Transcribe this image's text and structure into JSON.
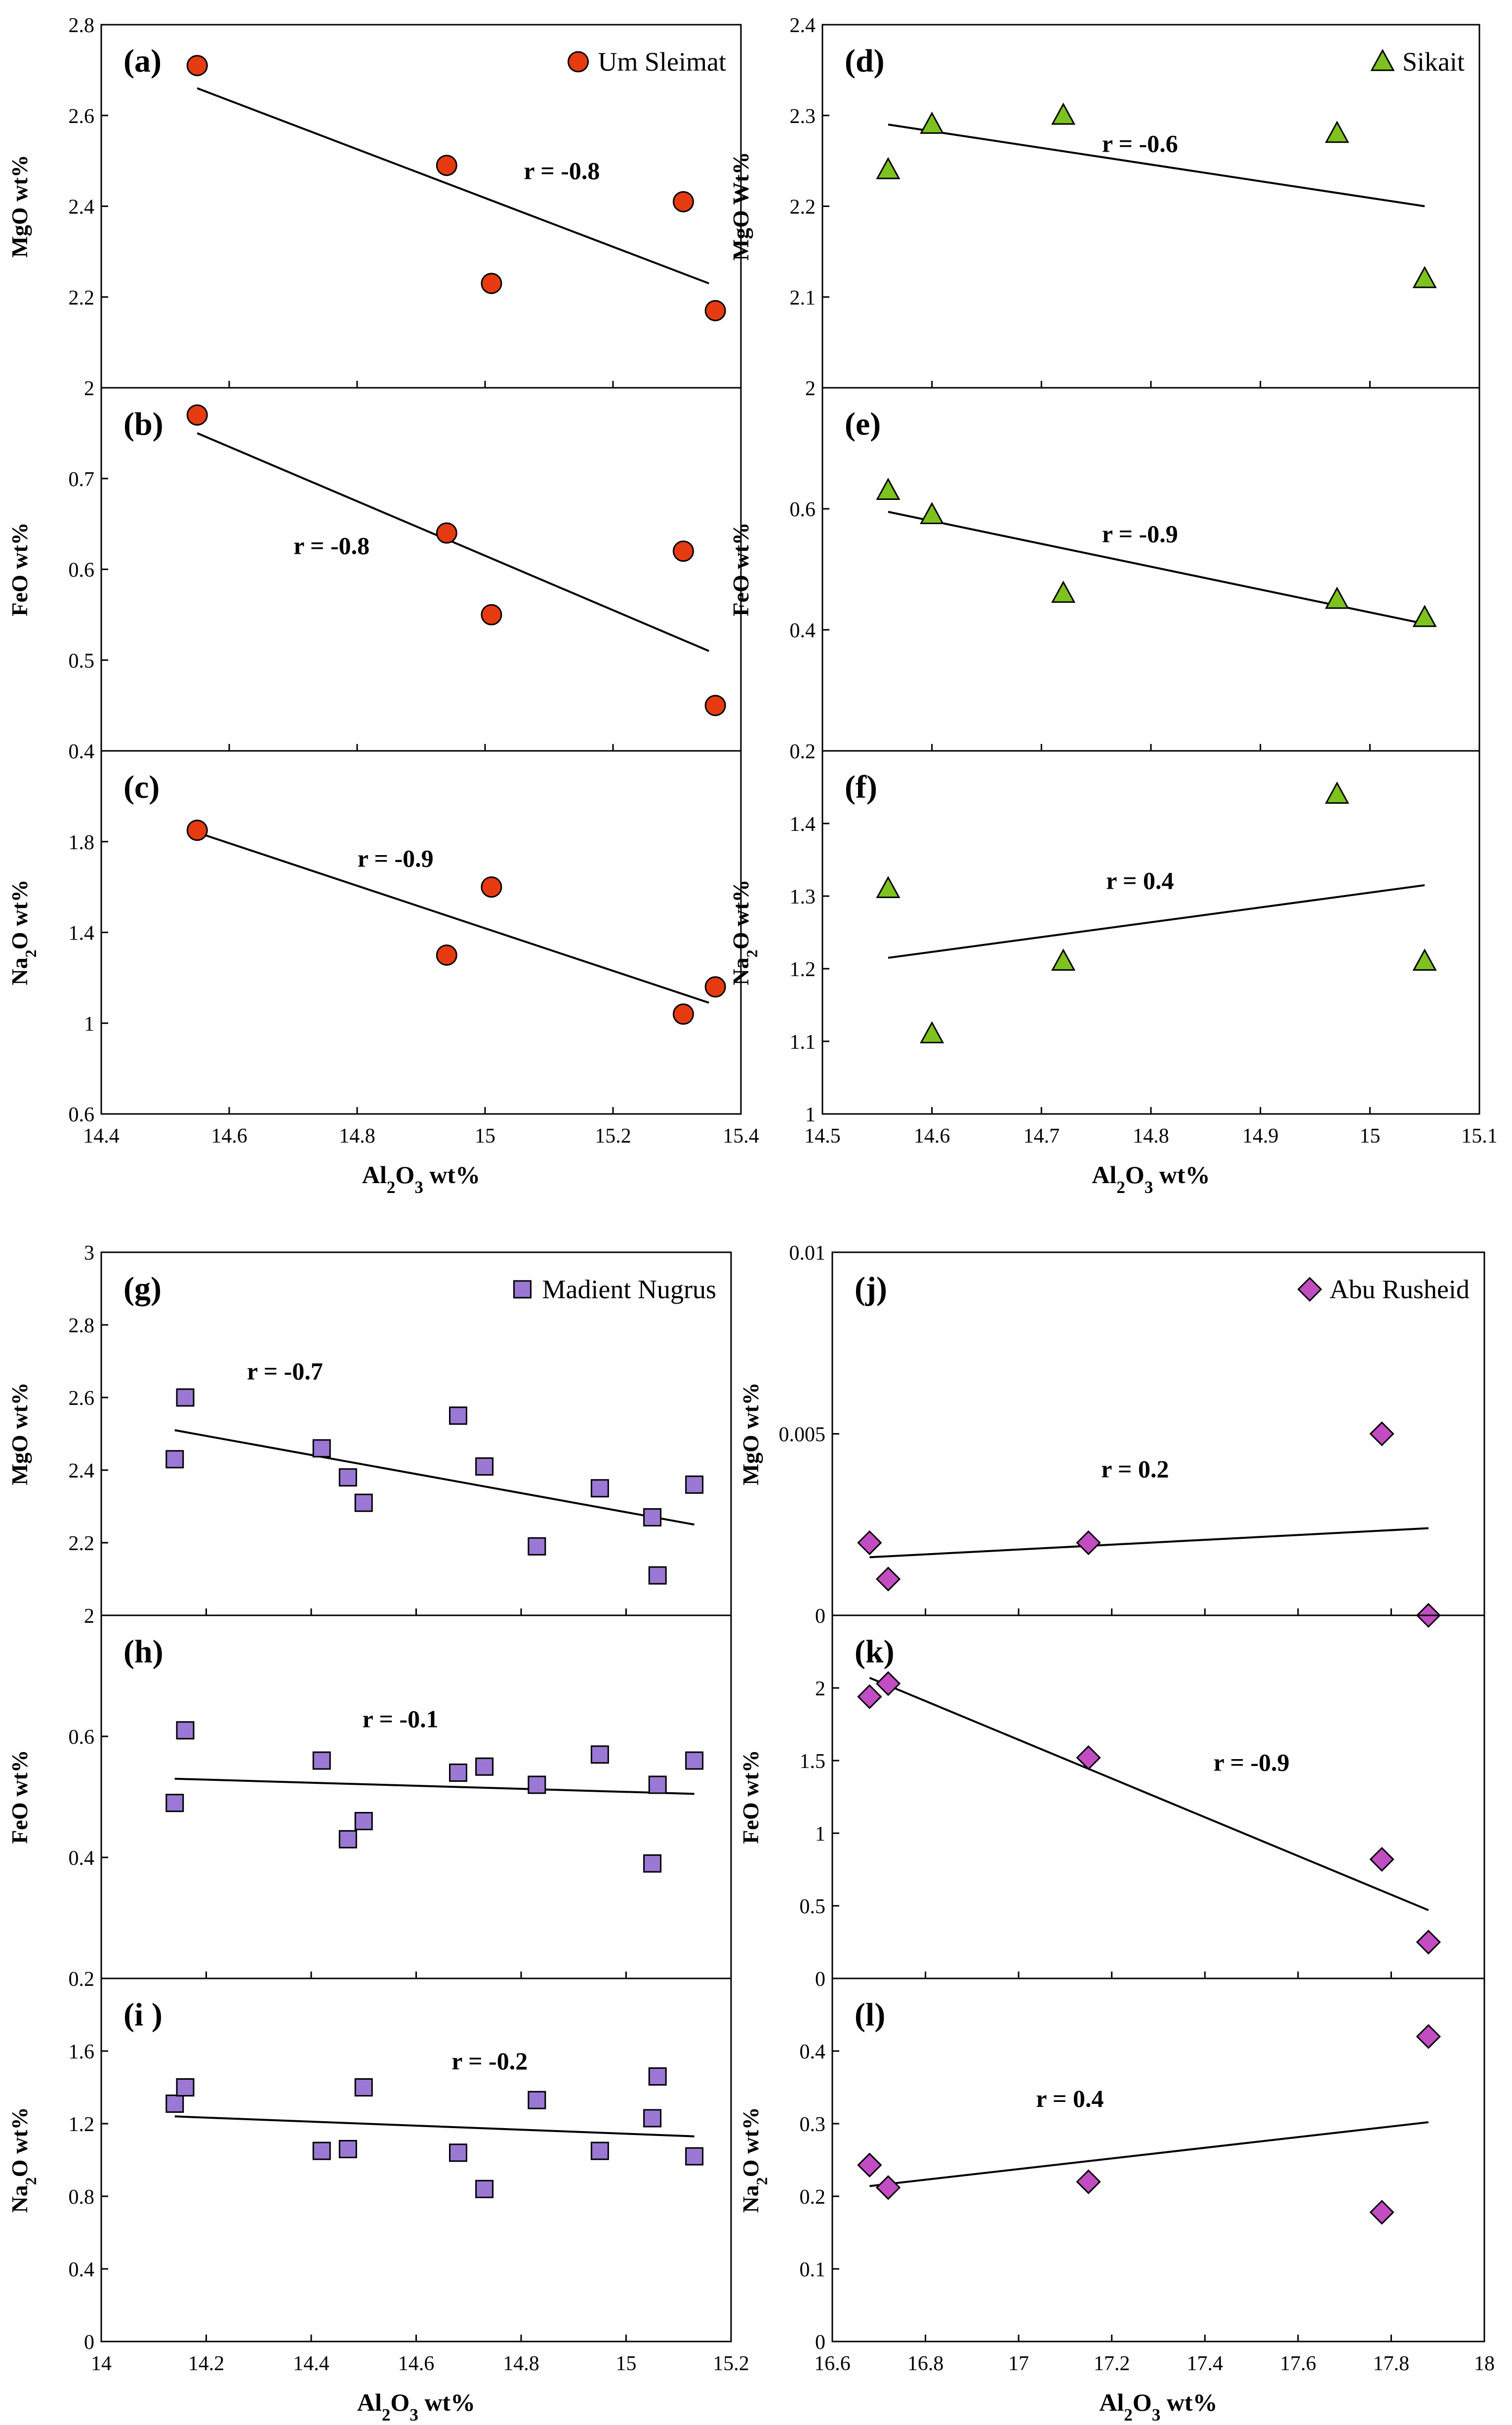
{
  "figure": {
    "groups": [
      {
        "id": "um-sleimat",
        "legend": "Um Sleimat",
        "marker": "circle",
        "color": "#e63b10",
        "xlabel": "Al2O3 wt%",
        "xlim": [
          14.4,
          15.4
        ],
        "xticks": [
          "14.4",
          "14.6",
          "14.8",
          "15",
          "15.2",
          "15.4"
        ],
        "x": [
          14.55,
          14.94,
          15.01,
          15.31,
          15.36
        ]
      },
      {
        "id": "sikait",
        "legend": "Sikait",
        "marker": "triangle",
        "color": "#7dc21e",
        "xlabel": "Al2O3 wt%",
        "xlim": [
          14.5,
          15.1
        ],
        "xticks": [
          "14.5",
          "14.6",
          "14.7",
          "14.8",
          "14.9",
          "15",
          "15.1"
        ],
        "x": [
          14.56,
          14.6,
          14.72,
          14.97,
          15.05
        ]
      },
      {
        "id": "madient-nugrus",
        "legend": "Madient Nugrus",
        "marker": "square",
        "color": "#9a78d4",
        "xlabel": "Al2O3 wt%",
        "xlim": [
          14.0,
          15.2
        ],
        "xticks": [
          "14",
          "14.2",
          "14.4",
          "14.6",
          "14.8",
          "15",
          "15.2"
        ],
        "x": [
          14.14,
          14.16,
          14.42,
          14.47,
          14.5,
          14.68,
          14.73,
          14.83,
          14.95,
          15.05,
          15.06,
          15.13
        ]
      },
      {
        "id": "abu-rusheid",
        "legend": "Abu Rusheid",
        "marker": "diamond",
        "color": "#c24cc2",
        "xlabel": "Al2O3 wt%",
        "xlim": [
          16.6,
          18.0
        ],
        "xticks": [
          "16.6",
          "16.8",
          "17",
          "17.2",
          "17.4",
          "17.6",
          "17.8",
          "18"
        ],
        "x": [
          16.68,
          16.72,
          17.15,
          17.78,
          17.88
        ]
      }
    ]
  },
  "chart_data": [
    {
      "type": "scatter",
      "panel": "(a)",
      "group": "Um Sleimat",
      "ylabel": "MgO wt%",
      "ylim": [
        2.0,
        2.8
      ],
      "yticks": [
        "2",
        "2.2",
        "2.4",
        "2.6",
        "2.8"
      ],
      "x": [
        14.55,
        14.94,
        15.01,
        15.31,
        15.36
      ],
      "y": [
        2.71,
        2.49,
        2.23,
        2.41,
        2.17
      ],
      "fit": [
        [
          14.55,
          2.66
        ],
        [
          15.35,
          2.23
        ]
      ],
      "r": "r = -0.8",
      "rpos": [
        15.12,
        2.46
      ],
      "showLegend": true
    },
    {
      "type": "scatter",
      "panel": "(b)",
      "group": "Um Sleimat",
      "ylabel": "FeO wt%",
      "ylim": [
        0.4,
        0.8
      ],
      "yticks": [
        "0.4",
        "0.5",
        "0.6",
        "0.7"
      ],
      "x": [
        14.55,
        14.94,
        15.01,
        15.31,
        15.36
      ],
      "y": [
        0.77,
        0.64,
        0.55,
        0.62,
        0.45
      ],
      "fit": [
        [
          14.55,
          0.75
        ],
        [
          15.35,
          0.51
        ]
      ],
      "r": "r = -0.8",
      "rpos": [
        14.76,
        0.617
      ]
    },
    {
      "type": "scatter",
      "panel": "(c)",
      "group": "Um Sleimat",
      "ylabel": "Na2O wt%",
      "ylim": [
        0.6,
        2.2
      ],
      "yticks": [
        "0.6",
        "1",
        "1.4",
        "1.8"
      ],
      "hideTopTick": true,
      "x": [
        14.55,
        14.94,
        15.01,
        15.31,
        15.36
      ],
      "y": [
        1.85,
        1.3,
        1.6,
        1.04,
        1.16
      ],
      "fit": [
        [
          14.55,
          1.84
        ],
        [
          15.35,
          1.09
        ]
      ],
      "r": "r = -0.9",
      "rpos": [
        14.86,
        1.69
      ],
      "showXAxis": true
    },
    {
      "type": "scatter",
      "panel": "(d)",
      "group": "Sikait",
      "ylabel": "MgO Wt%",
      "ylim": [
        2.0,
        2.4
      ],
      "yticks": [
        "2",
        "2.1",
        "2.2",
        "2.3",
        "2.4"
      ],
      "x": [
        14.56,
        14.6,
        14.72,
        14.97,
        15.05
      ],
      "y": [
        2.24,
        2.29,
        2.3,
        2.28,
        2.12
      ],
      "fit": [
        [
          14.56,
          2.29
        ],
        [
          15.05,
          2.2
        ]
      ],
      "r": "r = -0.6",
      "rpos": [
        14.79,
        2.26
      ],
      "showLegend": true
    },
    {
      "type": "scatter",
      "panel": "(e)",
      "group": "Sikait",
      "ylabel": "FeO wt%",
      "ylim": [
        0.2,
        0.8
      ],
      "yticks": [
        "0.2",
        "0.4",
        "0.6"
      ],
      "x": [
        14.56,
        14.6,
        14.72,
        14.97,
        15.05
      ],
      "y": [
        0.63,
        0.59,
        0.46,
        0.45,
        0.42
      ],
      "fit": [
        [
          14.56,
          0.595
        ],
        [
          15.05,
          0.41
        ]
      ],
      "r": "r = -0.9",
      "rpos": [
        14.79,
        0.545
      ]
    },
    {
      "type": "scatter",
      "panel": "(f)",
      "group": "Sikait",
      "ylabel": "Na2O wt%",
      "ylim": [
        1.0,
        1.5
      ],
      "yticks": [
        "1",
        "1.1",
        "1.2",
        "1.3",
        "1.4"
      ],
      "x": [
        14.56,
        14.6,
        14.72,
        14.97,
        15.05
      ],
      "y": [
        1.31,
        1.11,
        1.21,
        1.44,
        1.21
      ],
      "fit": [
        [
          14.56,
          1.215
        ],
        [
          15.05,
          1.315
        ]
      ],
      "r": "r = 0.4",
      "rpos": [
        14.79,
        1.31
      ],
      "showXAxis": true
    },
    {
      "type": "scatter",
      "panel": "(g)",
      "group": "Madient Nugrus",
      "ylabel": "MgO wt%",
      "ylim": [
        2.0,
        3.0
      ],
      "yticks": [
        "2",
        "2.2",
        "2.4",
        "2.6",
        "2.8",
        "3"
      ],
      "x": [
        14.14,
        14.16,
        14.42,
        14.47,
        14.5,
        14.68,
        14.73,
        14.83,
        14.95,
        15.05,
        15.06,
        15.13
      ],
      "y": [
        2.43,
        2.6,
        2.46,
        2.38,
        2.31,
        2.55,
        2.41,
        2.19,
        2.35,
        2.27,
        2.11,
        2.36
      ],
      "fit": [
        [
          14.14,
          2.51
        ],
        [
          15.13,
          2.25
        ]
      ],
      "r": "r = -0.7",
      "rpos": [
        14.35,
        2.65
      ],
      "showLegend": true
    },
    {
      "type": "scatter",
      "panel": "(h)",
      "group": "Madient Nugrus",
      "ylabel": "FeO wt%",
      "ylim": [
        0.2,
        0.8
      ],
      "yticks": [
        "0.2",
        "0.4",
        "0.6"
      ],
      "x": [
        14.14,
        14.16,
        14.42,
        14.47,
        14.5,
        14.68,
        14.73,
        14.83,
        14.95,
        15.05,
        15.06,
        15.13
      ],
      "y": [
        0.49,
        0.61,
        0.56,
        0.43,
        0.46,
        0.54,
        0.55,
        0.52,
        0.57,
        0.39,
        0.52,
        0.56
      ],
      "fit": [
        [
          14.14,
          0.53
        ],
        [
          15.13,
          0.505
        ]
      ],
      "r": "r = -0.1",
      "rpos": [
        14.57,
        0.615
      ]
    },
    {
      "type": "scatter",
      "panel": "(i )",
      "group": "Madient Nugrus",
      "ylabel": "Na2O wt%",
      "ylim": [
        0.0,
        2.0
      ],
      "yticks": [
        "0",
        "0.4",
        "0.8",
        "1.2",
        "1.6"
      ],
      "hideTopTick": true,
      "x": [
        14.14,
        14.16,
        14.42,
        14.47,
        14.5,
        14.68,
        14.73,
        14.83,
        14.95,
        15.05,
        15.06,
        15.13
      ],
      "y": [
        1.31,
        1.4,
        1.05,
        1.06,
        1.4,
        1.04,
        0.84,
        1.33,
        1.05,
        1.23,
        1.46,
        1.02
      ],
      "fit": [
        [
          14.14,
          1.24
        ],
        [
          15.13,
          1.13
        ]
      ],
      "r": "r = -0.2",
      "rpos": [
        14.74,
        1.5
      ],
      "showXAxis": true
    },
    {
      "type": "scatter",
      "panel": "(j)",
      "group": "Abu Rusheid",
      "ylabel": "MgO wt%",
      "ylim": [
        0.0,
        0.01
      ],
      "yticks": [
        "0",
        "0.005",
        "0.01"
      ],
      "x": [
        16.68,
        16.72,
        17.15,
        17.78,
        17.88
      ],
      "y": [
        0.002,
        0.001,
        0.002,
        0.005,
        0.0
      ],
      "fit": [
        [
          16.68,
          0.0016
        ],
        [
          17.88,
          0.0024
        ]
      ],
      "r": "r = 0.2",
      "rpos": [
        17.25,
        0.0038
      ],
      "showLegend": true
    },
    {
      "type": "scatter",
      "panel": "(k)",
      "group": "Abu Rusheid",
      "ylabel": "FeO wt%",
      "ylim": [
        0.0,
        2.5
      ],
      "yticks": [
        "0",
        "0.5",
        "1",
        "1.5",
        "2"
      ],
      "hideTopTick": true,
      "x": [
        16.68,
        16.72,
        17.15,
        17.78,
        17.88
      ],
      "y": [
        1.94,
        2.03,
        1.52,
        0.82,
        0.25
      ],
      "fit": [
        [
          16.68,
          2.07
        ],
        [
          17.88,
          0.47
        ]
      ],
      "r": "r = -0.9",
      "rpos": [
        17.5,
        1.43
      ]
    },
    {
      "type": "scatter",
      "panel": "(l)",
      "group": "Abu Rusheid",
      "ylabel": "Na2O wt%",
      "ylim": [
        0.0,
        0.5
      ],
      "yticks": [
        "0",
        "0.1",
        "0.2",
        "0.3",
        "0.4"
      ],
      "x": [
        16.68,
        16.72,
        17.15,
        17.78,
        17.88
      ],
      "y": [
        0.243,
        0.212,
        0.22,
        0.178,
        0.42
      ],
      "fit": [
        [
          16.68,
          0.214
        ],
        [
          17.88,
          0.302
        ]
      ],
      "r": "r = 0.4",
      "rpos": [
        17.11,
        0.323
      ],
      "showXAxis": true
    }
  ]
}
